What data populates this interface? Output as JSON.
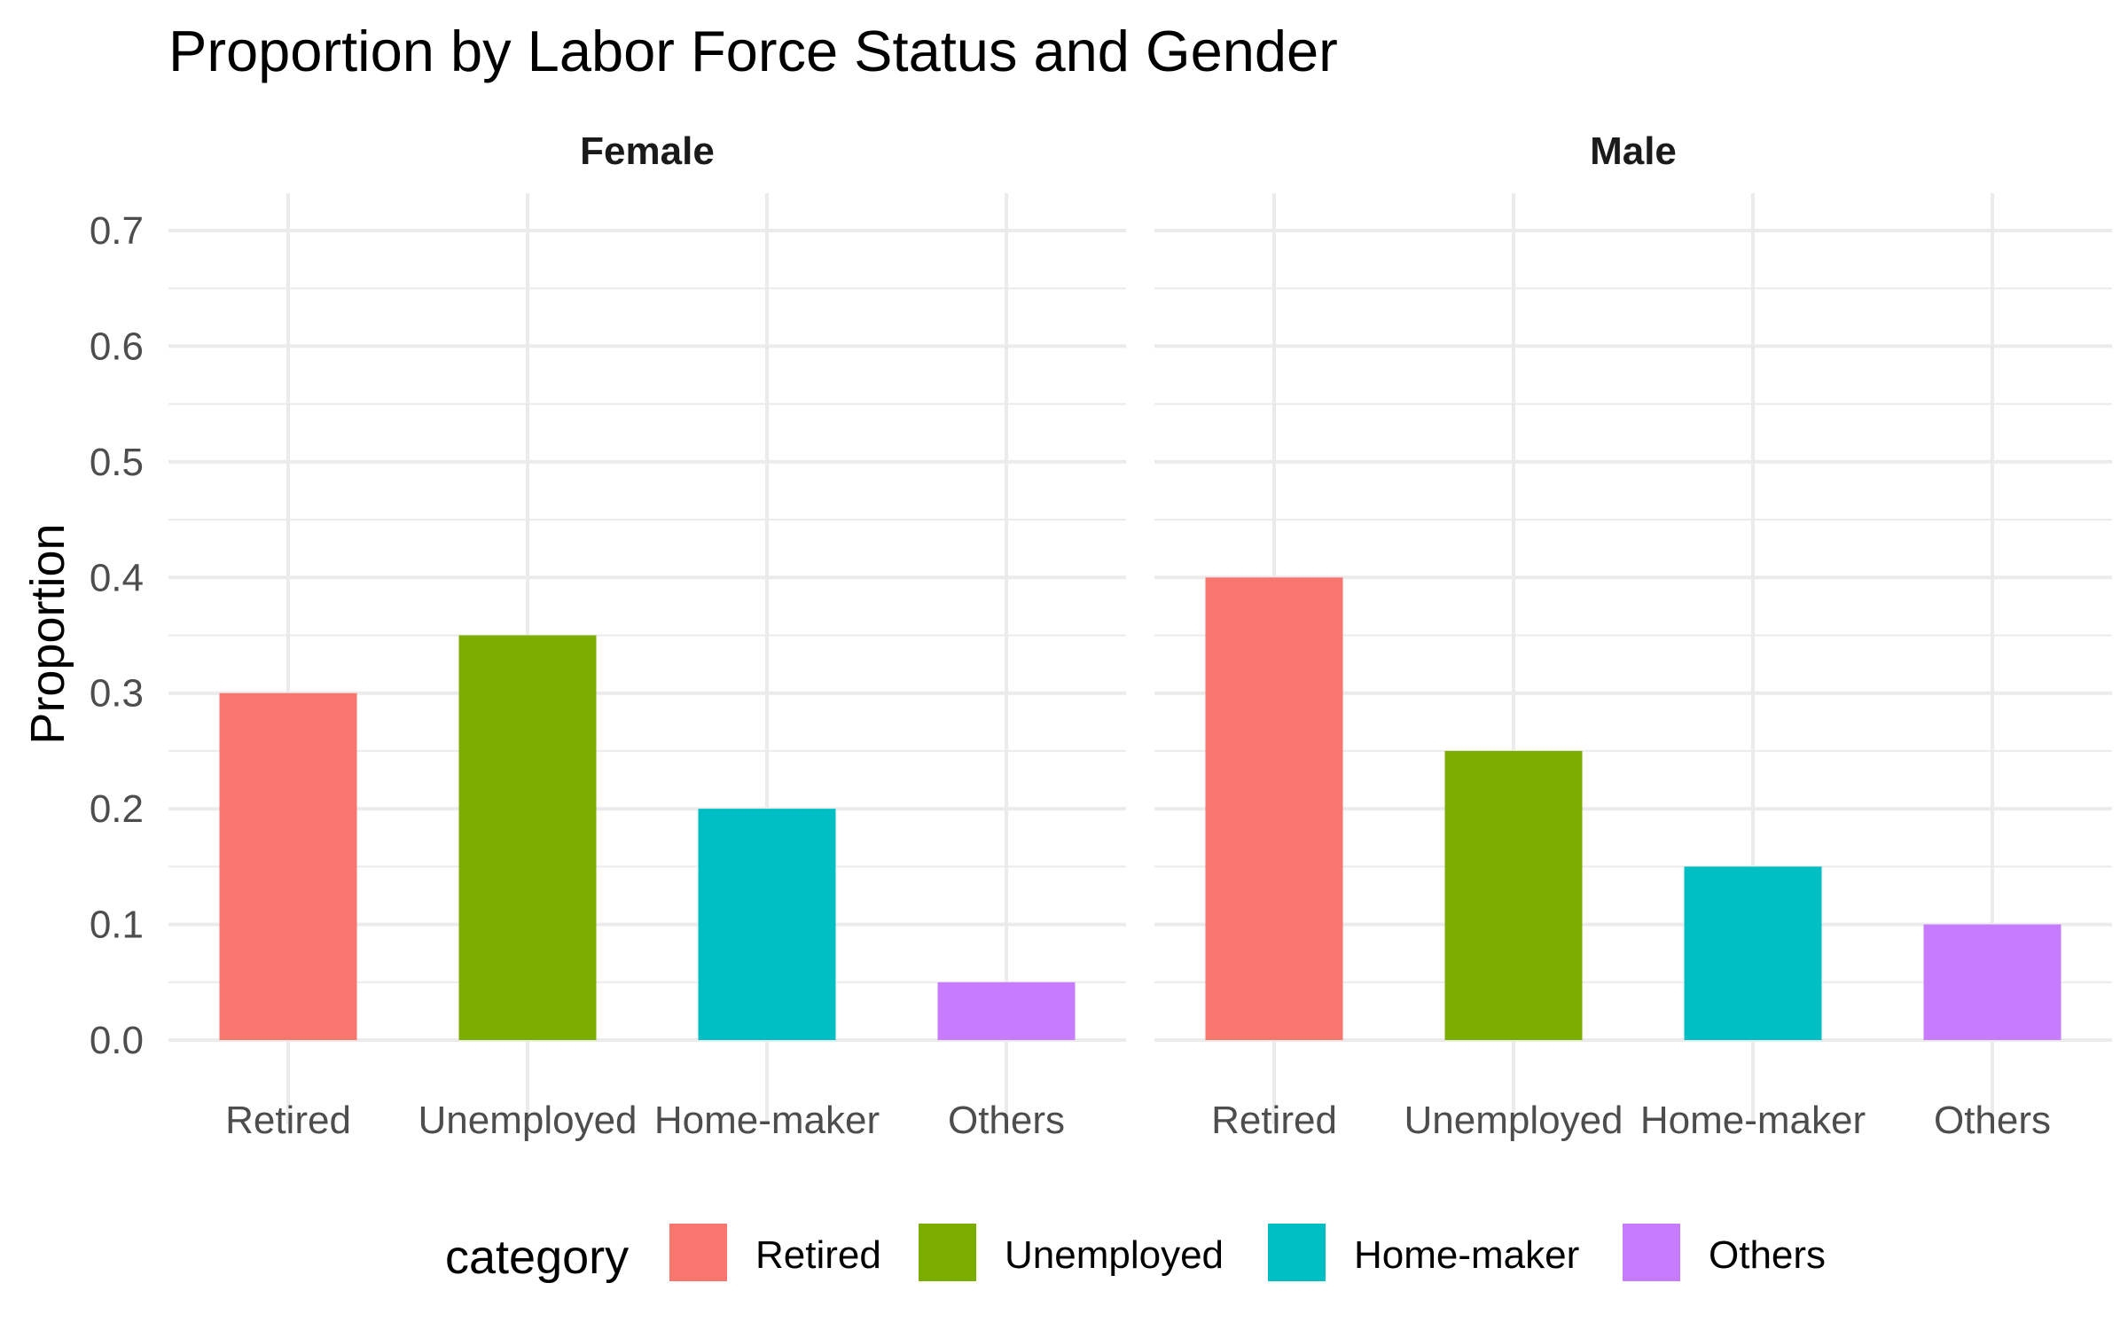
{
  "chart_data": {
    "type": "bar",
    "title": "Proportion by Labor Force Status and Gender",
    "xlabel": "",
    "ylabel": "Proportion",
    "ylim": [
      0,
      0.7
    ],
    "yticks": [
      "0.0",
      "0.1",
      "0.2",
      "0.3",
      "0.4",
      "0.5",
      "0.6",
      "0.7"
    ],
    "categories": [
      "Retired",
      "Unemployed",
      "Home-maker",
      "Others"
    ],
    "facets": [
      {
        "label": "Female",
        "values": [
          0.3,
          0.35,
          0.2,
          0.05
        ]
      },
      {
        "label": "Male",
        "values": [
          0.4,
          0.25,
          0.15,
          0.1
        ]
      }
    ],
    "legend": {
      "title": "category",
      "position": "bottom",
      "items": [
        {
          "label": "Retired",
          "color": "#F8766D"
        },
        {
          "label": "Unemployed",
          "color": "#7CAE00"
        },
        {
          "label": "Home-maker",
          "color": "#00BFC4"
        },
        {
          "label": "Others",
          "color": "#C77CFF"
        }
      ]
    },
    "grid": true
  }
}
